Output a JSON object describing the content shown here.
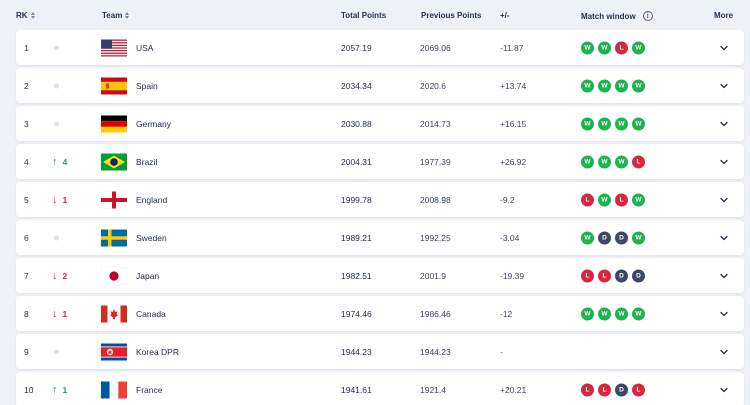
{
  "header": {
    "rk": "RK",
    "team": "Team",
    "total_points": "Total Points",
    "previous_points": "Previous Points",
    "diff": "+/-",
    "match_window": "Match window",
    "more": "More"
  },
  "colors": {
    "win": "#1db34f",
    "loss": "#d7263d",
    "draw": "#3d4865",
    "up": "#1aa553",
    "down": "#d3263c"
  },
  "rows": [
    {
      "rank": "1",
      "move": "",
      "move_dir": "none",
      "flag": "flag-usa-icon",
      "team": "USA",
      "total": "2057.19",
      "previous": "2069.06",
      "diff": "-11.87",
      "results": [
        "W",
        "W",
        "L",
        "W"
      ]
    },
    {
      "rank": "2",
      "move": "",
      "move_dir": "none",
      "flag": "flag-spain-icon",
      "team": "Spain",
      "total": "2034.34",
      "previous": "2020.6",
      "diff": "+13.74",
      "results": [
        "W",
        "W",
        "W",
        "W"
      ]
    },
    {
      "rank": "3",
      "move": "",
      "move_dir": "none",
      "flag": "flag-germany-icon",
      "team": "Germany",
      "total": "2030.88",
      "previous": "2014.73",
      "diff": "+16.15",
      "results": [
        "W",
        "W",
        "W",
        "W"
      ]
    },
    {
      "rank": "4",
      "move": "4",
      "move_dir": "up",
      "flag": "flag-brazil-icon",
      "team": "Brazil",
      "total": "2004.31",
      "previous": "1977.39",
      "diff": "+26.92",
      "results": [
        "W",
        "W",
        "W",
        "L"
      ]
    },
    {
      "rank": "5",
      "move": "1",
      "move_dir": "down",
      "flag": "flag-england-icon",
      "team": "England",
      "total": "1999.78",
      "previous": "2008.98",
      "diff": "-9.2",
      "results": [
        "L",
        "W",
        "L",
        "W"
      ]
    },
    {
      "rank": "6",
      "move": "",
      "move_dir": "none",
      "flag": "flag-sweden-icon",
      "team": "Sweden",
      "total": "1989.21",
      "previous": "1992.25",
      "diff": "-3.04",
      "results": [
        "W",
        "D",
        "D",
        "W"
      ]
    },
    {
      "rank": "7",
      "move": "2",
      "move_dir": "down",
      "flag": "flag-japan-icon",
      "team": "Japan",
      "total": "1982.51",
      "previous": "2001.9",
      "diff": "-19.39",
      "results": [
        "L",
        "L",
        "D",
        "D"
      ]
    },
    {
      "rank": "8",
      "move": "1",
      "move_dir": "down",
      "flag": "flag-canada-icon",
      "team": "Canada",
      "total": "1974.46",
      "previous": "1986.46",
      "diff": "-12",
      "results": [
        "W",
        "W",
        "W",
        "W"
      ]
    },
    {
      "rank": "9",
      "move": "",
      "move_dir": "none",
      "flag": "flag-korea-dpr-icon",
      "team": "Korea DPR",
      "total": "1944.23",
      "previous": "1944.23",
      "diff": "-",
      "results": []
    },
    {
      "rank": "10",
      "move": "1",
      "move_dir": "up",
      "flag": "flag-france-icon",
      "team": "France",
      "total": "1941.61",
      "previous": "1921.4",
      "diff": "+20.21",
      "results": [
        "L",
        "L",
        "D",
        "L"
      ]
    }
  ]
}
